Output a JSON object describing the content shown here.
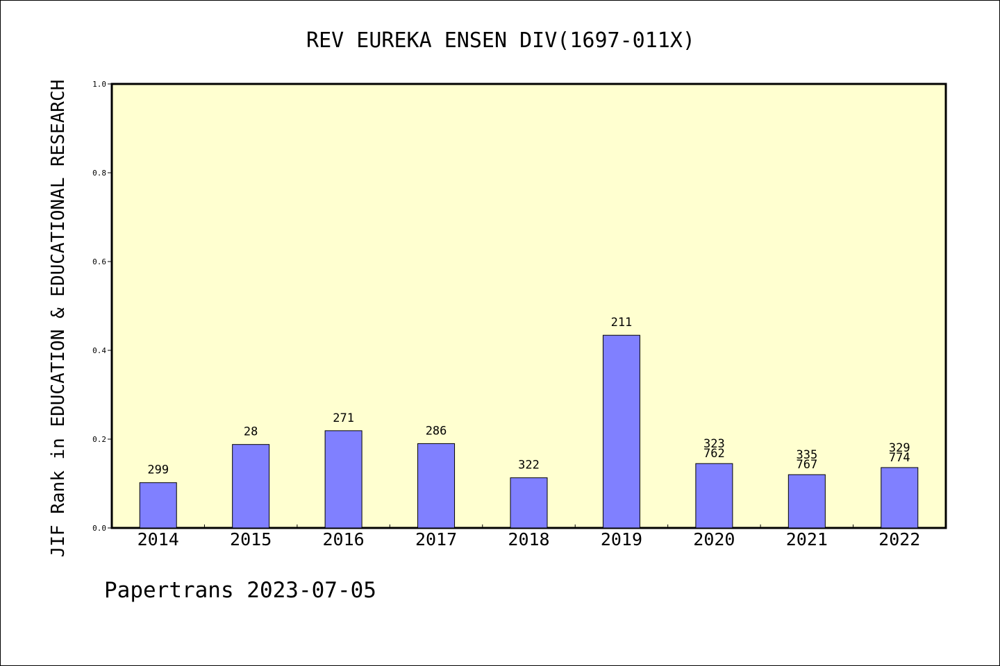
{
  "chart_data": {
    "type": "bar",
    "title": "REV EUREKA ENSEN DIV(1697-011X)",
    "ylabel": "JIF Rank in EDUCATION & EDUCATIONAL RESEARCH",
    "xlabel": "",
    "ylim": [
      0,
      1.0
    ],
    "yticks": [
      "0.0",
      "0.2",
      "0.4",
      "0.6",
      "0.8",
      "1.0"
    ],
    "categories": [
      "2014",
      "2015",
      "2016",
      "2017",
      "2018",
      "2019",
      "2020",
      "2021",
      "2022"
    ],
    "values": [
      0.102,
      0.188,
      0.219,
      0.19,
      0.113,
      0.434,
      0.145,
      0.12,
      0.136
    ],
    "data_labels": [
      [
        "299"
      ],
      [
        "28"
      ],
      [
        "271"
      ],
      [
        "286"
      ],
      [
        "322"
      ],
      [
        "211"
      ],
      [
        "323",
        "762"
      ],
      [
        "335",
        "767"
      ],
      [
        "329",
        "774"
      ]
    ],
    "grid": false,
    "colors": {
      "plot_background": "#ffffd0",
      "bar_fill": "#8080ff",
      "bar_stroke": "#000000"
    }
  },
  "footer": {
    "text": "Papertrans 2023-07-05"
  }
}
